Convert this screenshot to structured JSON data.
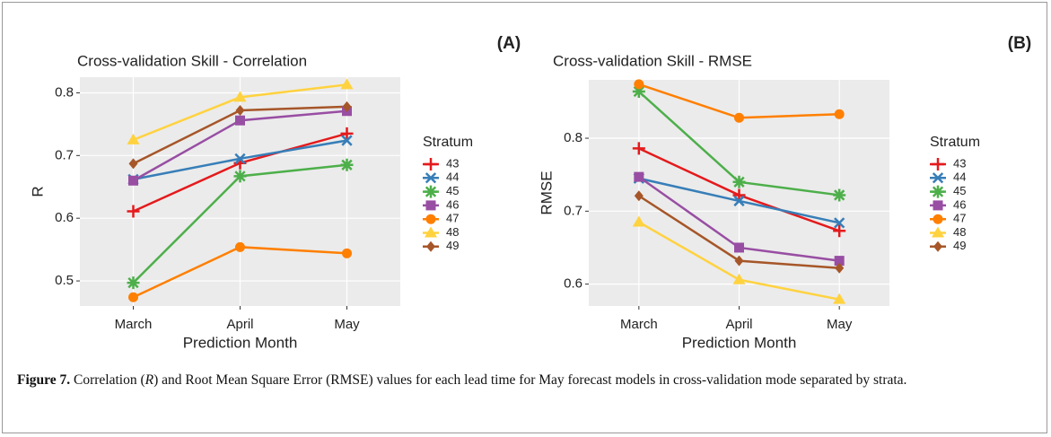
{
  "figure": {
    "panel_labels": [
      "(A)",
      "(B)"
    ],
    "caption": {
      "label": "Figure 7.",
      "text": [
        "Correlation (",
        "R",
        ") and Root Mean Square Error (RMSE) values for each lead time for May forecast models in cross-validation mode separated by strata."
      ]
    }
  },
  "chart_data": [
    {
      "type": "line",
      "title": "Cross-validation Skill - Correlation",
      "x_label": "Prediction Month",
      "y_label": "R",
      "categories": [
        "March",
        "April",
        "May"
      ],
      "ylim": [
        0.46,
        0.825
      ],
      "yticks": [
        0.5,
        0.6,
        0.7,
        0.8
      ],
      "grid": true,
      "legend_title": "Stratum",
      "legend": "right",
      "series": [
        {
          "name": "43",
          "color": "#e41a1c",
          "marker": "plus",
          "values": [
            0.611,
            0.688,
            0.735
          ]
        },
        {
          "name": "44",
          "color": "#377eb8",
          "marker": "x",
          "values": [
            0.662,
            0.695,
            0.724
          ]
        },
        {
          "name": "45",
          "color": "#4daf4a",
          "marker": "star",
          "values": [
            0.497,
            0.667,
            0.685
          ]
        },
        {
          "name": "46",
          "color": "#984ea3",
          "marker": "square",
          "values": [
            0.66,
            0.756,
            0.771
          ]
        },
        {
          "name": "47",
          "color": "#ff7f00",
          "marker": "circle",
          "values": [
            0.474,
            0.554,
            0.544
          ]
        },
        {
          "name": "48",
          "color": "#ffd23f",
          "marker": "triangle",
          "values": [
            0.725,
            0.793,
            0.813
          ]
        },
        {
          "name": "49",
          "color": "#a65628",
          "marker": "diamond",
          "values": [
            0.687,
            0.772,
            0.778
          ]
        }
      ]
    },
    {
      "type": "line",
      "title": "Cross-validation Skill - RMSE",
      "x_label": "Prediction Month",
      "y_label": "RMSE",
      "categories": [
        "March",
        "April",
        "May"
      ],
      "ylim": [
        0.57,
        0.88
      ],
      "yticks": [
        0.6,
        0.7,
        0.8
      ],
      "grid": true,
      "legend_title": "Stratum",
      "legend": "right",
      "series": [
        {
          "name": "43",
          "color": "#e41a1c",
          "marker": "plus",
          "values": [
            0.786,
            0.722,
            0.673
          ]
        },
        {
          "name": "44",
          "color": "#377eb8",
          "marker": "x",
          "values": [
            0.745,
            0.714,
            0.684
          ]
        },
        {
          "name": "45",
          "color": "#4daf4a",
          "marker": "star",
          "values": [
            0.864,
            0.74,
            0.722
          ]
        },
        {
          "name": "46",
          "color": "#984ea3",
          "marker": "square",
          "values": [
            0.747,
            0.65,
            0.632
          ]
        },
        {
          "name": "47",
          "color": "#ff7f00",
          "marker": "circle",
          "values": [
            0.874,
            0.828,
            0.833
          ]
        },
        {
          "name": "48",
          "color": "#ffd23f",
          "marker": "triangle",
          "values": [
            0.685,
            0.606,
            0.579
          ]
        },
        {
          "name": "49",
          "color": "#a65628",
          "marker": "diamond",
          "values": [
            0.721,
            0.632,
            0.622
          ]
        }
      ]
    }
  ]
}
